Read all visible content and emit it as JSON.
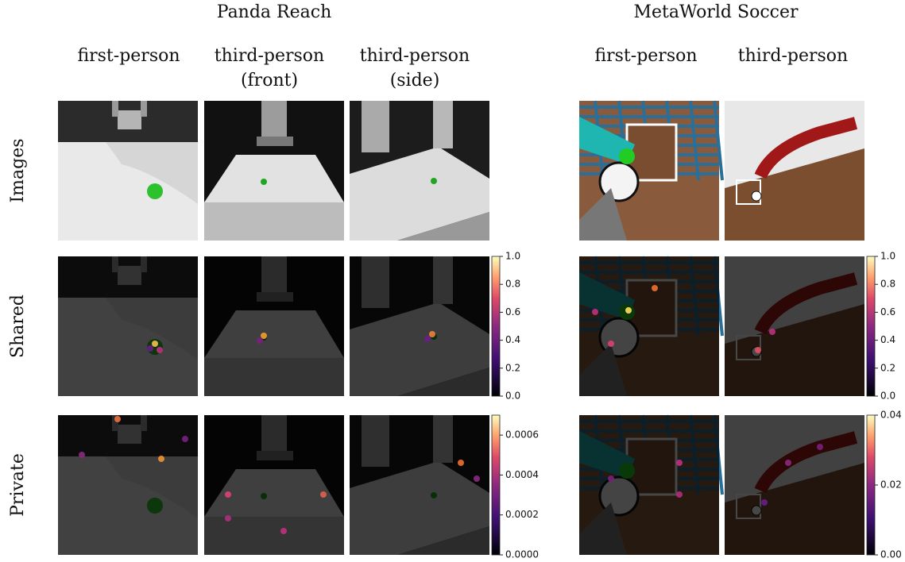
{
  "groups": [
    {
      "title": "Panda Reach",
      "columns": [
        [
          "first-person"
        ],
        [
          "third-person",
          "(front)"
        ],
        [
          "third-person",
          "(side)"
        ]
      ]
    },
    {
      "title": "MetaWorld Soccer",
      "columns": [
        [
          "first-person"
        ],
        [
          "third-person"
        ]
      ]
    }
  ],
  "rows": [
    "Images",
    "Shared",
    "Private"
  ],
  "colorbars": [
    {
      "lim": [
        0,
        1
      ],
      "ticks": [
        {
          "value": 0,
          "label": "0.0"
        },
        {
          "value": 0.2,
          "label": "0.2"
        },
        {
          "value": 0.4,
          "label": "0.4"
        },
        {
          "value": 0.6,
          "label": "0.6"
        },
        {
          "value": 0.8,
          "label": "0.8"
        },
        {
          "value": 1,
          "label": "1.0"
        }
      ]
    },
    {
      "lim": [
        0,
        0.0007
      ],
      "ticks": [
        {
          "value": 0,
          "label": "0.0000"
        },
        {
          "value": 0.0002,
          "label": "0.0002"
        },
        {
          "value": 0.0004,
          "label": "0.0004"
        },
        {
          "value": 0.0006,
          "label": "0.0006"
        }
      ]
    },
    {
      "lim": [
        0,
        1
      ],
      "ticks": [
        {
          "value": 0,
          "label": "0.0"
        },
        {
          "value": 0.2,
          "label": "0.2"
        },
        {
          "value": 0.4,
          "label": "0.4"
        },
        {
          "value": 0.6,
          "label": "0.6"
        },
        {
          "value": 0.8,
          "label": "0.8"
        },
        {
          "value": 1,
          "label": "1.0"
        }
      ]
    },
    {
      "lim": [
        0,
        0.04
      ],
      "ticks": [
        {
          "value": 0,
          "label": "0.00"
        },
        {
          "value": 0.02,
          "label": "0.02"
        },
        {
          "value": 0.04,
          "label": "0.04"
        }
      ]
    }
  ]
}
